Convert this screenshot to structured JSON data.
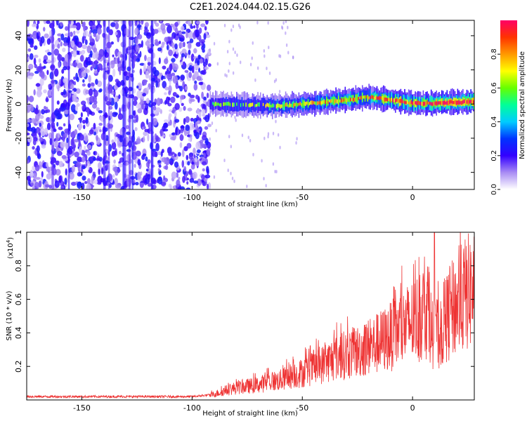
{
  "title": "C2E1.2024.044.02.15.G26",
  "chart_data": [
    {
      "type": "heatmap",
      "xlabel": "Height of straight line (km)",
      "ylabel": "Frequency (Hz)",
      "xlim": [
        -175,
        28
      ],
      "ylim": [
        -50,
        49
      ],
      "x_ticks": [
        -150,
        -100,
        -50,
        0
      ],
      "y_ticks": [
        -40,
        -20,
        0,
        20,
        40
      ],
      "colorbar": {
        "label": "Normalized spectral amplitude",
        "range": [
          0.0,
          1.0
        ],
        "ticks": [
          "0.0",
          "0.2",
          "0.4",
          "0.6",
          "0.8"
        ],
        "colors": [
          "#ffffff",
          "#a98cf4",
          "#3300ff",
          "#0033ff",
          "#00ccff",
          "#00ff99",
          "#66ff00",
          "#ffff00",
          "#ff9900",
          "#ff3300",
          "#ff0066"
        ]
      },
      "features": {
        "noise_region_x": [
          -175,
          -92
        ],
        "noise_amplitude": 0.2,
        "signal_trace": [
          {
            "x": -92,
            "y": 0.0
          },
          {
            "x": -60,
            "y": -1.0
          },
          {
            "x": -45,
            "y": 0.5
          },
          {
            "x": -30,
            "y": 2.5
          },
          {
            "x": -20,
            "y": 4.0
          },
          {
            "x": -10,
            "y": 2.5
          },
          {
            "x": 0,
            "y": 0.5
          },
          {
            "x": 10,
            "y": 0.5
          },
          {
            "x": 28,
            "y": 1.5
          }
        ],
        "signal_amplitude_start": 0.45,
        "signal_amplitude_end": 0.9
      }
    },
    {
      "type": "line",
      "xlabel": "Height of straight line (km)",
      "ylabel": "SNR (10 * v/v)",
      "y_multiplier": "(x10",
      "y_multiplier_exp": "4",
      "y_multiplier_close": ")",
      "xlim": [
        -175,
        28
      ],
      "ylim": [
        0,
        1.0
      ],
      "x_ticks": [
        -150,
        -100,
        -50,
        0
      ],
      "y_ticks": [
        0.2,
        0.4,
        0.6,
        0.8,
        1.0
      ],
      "series": [
        {
          "color": "#ee3333",
          "points": [
            [
              -175,
              0.02
            ],
            [
              -150,
              0.02
            ],
            [
              -125,
              0.02
            ],
            [
              -100,
              0.02
            ],
            [
              -92,
              0.03
            ],
            [
              -85,
              0.06
            ],
            [
              -80,
              0.08
            ],
            [
              -75,
              0.09
            ],
            [
              -70,
              0.1
            ],
            [
              -65,
              0.12
            ],
            [
              -60,
              0.13
            ],
            [
              -55,
              0.16
            ],
            [
              -50,
              0.18
            ],
            [
              -45,
              0.21
            ],
            [
              -40,
              0.24
            ],
            [
              -35,
              0.28
            ],
            [
              -30,
              0.3
            ],
            [
              -25,
              0.32
            ],
            [
              -20,
              0.35
            ],
            [
              -15,
              0.38
            ],
            [
              -10,
              0.42
            ],
            [
              -5,
              0.47
            ],
            [
              0,
              0.52
            ],
            [
              5,
              0.57
            ],
            [
              7,
              0.62
            ],
            [
              8,
              0.55
            ],
            [
              9,
              0.35
            ],
            [
              10,
              0.82
            ],
            [
              11,
              0.45
            ],
            [
              12,
              0.4
            ],
            [
              14,
              0.5
            ],
            [
              17,
              0.58
            ],
            [
              20,
              0.63
            ],
            [
              24,
              0.7
            ],
            [
              28,
              0.74
            ]
          ]
        }
      ]
    }
  ]
}
